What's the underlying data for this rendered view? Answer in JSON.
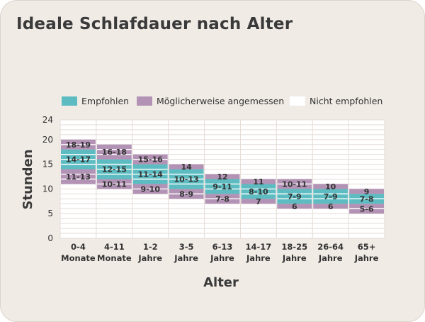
{
  "title": "Ideale Schlafdauer nach Alter",
  "legend": [
    {
      "label": "Empfohlen",
      "color": "#5cbcc1"
    },
    {
      "label": "Möglicherweise angemessen",
      "color": "#b393b5"
    },
    {
      "label": "Nicht empfohlen",
      "color": "#ffffff"
    }
  ],
  "chart_data": {
    "type": "bar",
    "xlabel": "Alter",
    "ylabel": "Stunden",
    "ylim": [
      0,
      24
    ],
    "yticks": [
      0,
      5,
      10,
      15,
      20,
      24
    ],
    "grid": true,
    "legend_position": "top",
    "categories": [
      {
        "line1": "0-4",
        "line2": "Monate",
        "recommended": [
          14,
          17
        ],
        "lower": [
          11,
          13
        ],
        "upper": [
          18,
          19
        ],
        "labels": {
          "rec": "14-17",
          "low": "11-13",
          "up": "18-19"
        }
      },
      {
        "line1": "4-11",
        "line2": "Monate",
        "recommended": [
          12,
          15
        ],
        "lower": [
          10,
          11
        ],
        "upper": [
          16,
          18
        ],
        "labels": {
          "rec": "12-15",
          "low": "10-11",
          "up": "16-18"
        }
      },
      {
        "line1": "1-2",
        "line2": "Jahre",
        "recommended": [
          11,
          14
        ],
        "lower": [
          9,
          10
        ],
        "upper": [
          15,
          16
        ],
        "labels": {
          "rec": "11-14",
          "low": "9-10",
          "up": "15-16"
        }
      },
      {
        "line1": "3-5",
        "line2": "Jahre",
        "recommended": [
          10,
          13
        ],
        "lower": [
          8,
          9
        ],
        "upper": [
          14,
          14
        ],
        "labels": {
          "rec": "10-13",
          "low": "8-9",
          "up": "14"
        }
      },
      {
        "line1": "6-13",
        "line2": "Jahre",
        "recommended": [
          9,
          11
        ],
        "lower": [
          7,
          8
        ],
        "upper": [
          12,
          12
        ],
        "labels": {
          "rec": "9-11",
          "low": "7-8",
          "up": "12"
        }
      },
      {
        "line1": "14-17",
        "line2": "Jahre",
        "recommended": [
          8,
          10
        ],
        "lower": [
          7,
          7
        ],
        "upper": [
          11,
          11
        ],
        "labels": {
          "rec": "8-10",
          "low": "7",
          "up": "11"
        }
      },
      {
        "line1": "18-25",
        "line2": "Jahre",
        "recommended": [
          7,
          9
        ],
        "lower": [
          6,
          6
        ],
        "upper": [
          10,
          11
        ],
        "labels": {
          "rec": "7-9",
          "low": "6",
          "up": "10-11"
        }
      },
      {
        "line1": "26-64",
        "line2": "Jahre",
        "recommended": [
          7,
          9
        ],
        "lower": [
          6,
          6
        ],
        "upper": [
          10,
          10
        ],
        "labels": {
          "rec": "7-9",
          "low": "6",
          "up": "10"
        }
      },
      {
        "line1": "65+",
        "line2": "Jahre",
        "recommended": [
          7,
          8
        ],
        "lower": [
          5,
          6
        ],
        "upper": [
          9,
          9
        ],
        "labels": {
          "rec": "7-8",
          "low": "5-6",
          "up": "9"
        }
      }
    ]
  }
}
